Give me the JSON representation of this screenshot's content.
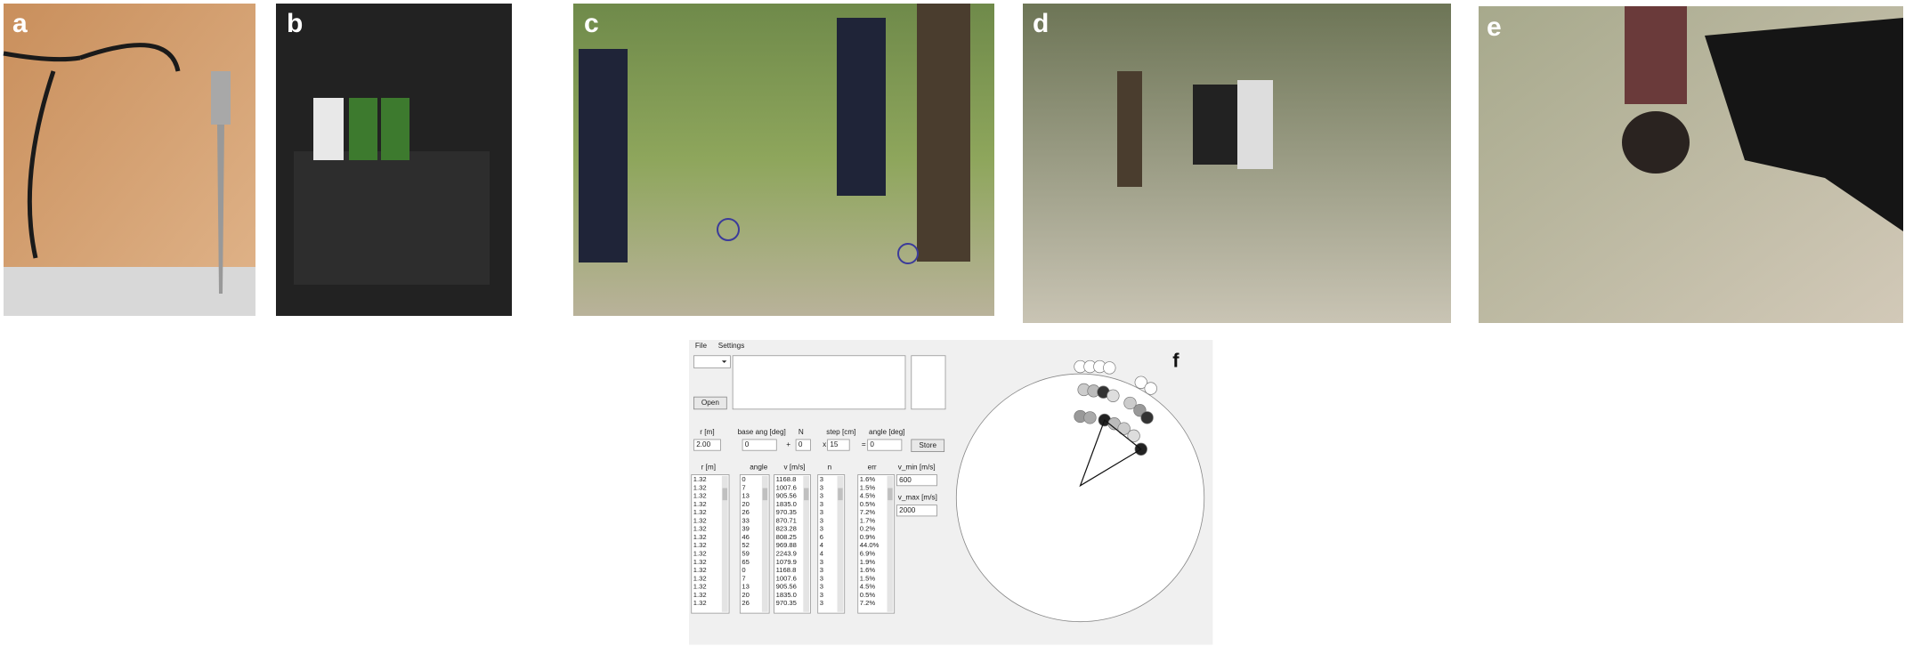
{
  "panels": [
    {
      "label": "a"
    },
    {
      "label": "b"
    },
    {
      "label": "c"
    },
    {
      "label": "d"
    },
    {
      "label": "e"
    },
    {
      "label": "f"
    }
  ],
  "software": {
    "menu": [
      "File",
      "Settings"
    ],
    "buttons": {
      "open": "Open",
      "store": "Store"
    },
    "params": {
      "labels": [
        "r [m]",
        "base ang [deg]",
        "N",
        "step [cm]",
        "angle [deg]"
      ],
      "values": [
        "2.00",
        "0",
        "0",
        "15",
        "0"
      ],
      "operators": [
        "+",
        "x",
        "="
      ]
    },
    "columns": [
      {
        "header": "r [m]",
        "rows": [
          "1.32",
          "1.32",
          "1.32",
          "1.32",
          "1.32",
          "1.32",
          "1.32",
          "1.32",
          "1.32",
          "1.32",
          "1.32",
          "1.32",
          "1.32",
          "1.32",
          "1.32",
          "1.32"
        ]
      },
      {
        "header": "angle",
        "rows": [
          "0",
          "7",
          "13",
          "20",
          "26",
          "33",
          "39",
          "46",
          "52",
          "59",
          "65",
          "0",
          "7",
          "13",
          "20",
          "26"
        ]
      },
      {
        "header": "v [m/s]",
        "rows": [
          "1168.8",
          "1007.6",
          "905.56",
          "1835.0",
          "970.35",
          "870.71",
          "823.28",
          "808.25",
          "969.88",
          "2243.9",
          "1079.9",
          "1168.8",
          "1007.6",
          "905.56",
          "1835.0",
          "970.35"
        ]
      },
      {
        "header": "n",
        "rows": [
          "3",
          "3",
          "3",
          "3",
          "3",
          "3",
          "3",
          "6",
          "4",
          "4",
          "3",
          "3",
          "3",
          "3",
          "3",
          "3"
        ]
      },
      {
        "header": "err",
        "rows": [
          "1.6%",
          "1.5%",
          "4.5%",
          "0.5%",
          "7.2%",
          "1.7%",
          "0.2%",
          "0.9%",
          "44.0%",
          "6.9%",
          "1.9%",
          "1.6%",
          "1.5%",
          "4.5%",
          "0.5%",
          "7.2%"
        ]
      }
    ],
    "v_min": {
      "label": "v_min [m/s]",
      "value": "600"
    },
    "v_max": {
      "label": "v_max [m/s]",
      "value": "2000"
    }
  }
}
